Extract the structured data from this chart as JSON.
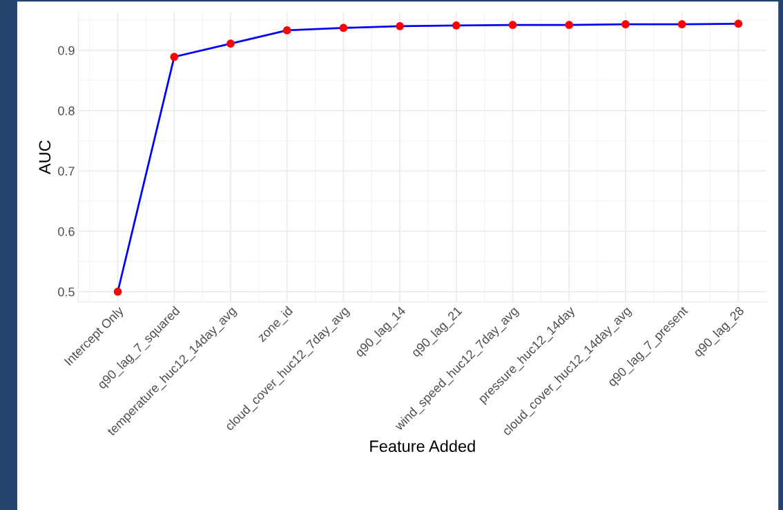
{
  "chart_data": {
    "type": "line",
    "xlabel": "Feature Added",
    "ylabel": "AUC",
    "categories": [
      "Intercept Only",
      "q90_lag_7_squared",
      "temperature_huc12_14day_avg",
      "zone_id",
      "cloud_cover_huc12_7day_avg",
      "q90_lag_14",
      "q90_lag_21",
      "wind_speed_huc12_7day_avg",
      "pressure_huc12_14day",
      "cloud_cover_huc12_14day_avg",
      "q90_lag_7_present",
      "q90_lag_28"
    ],
    "series": [
      {
        "color": "#0000ff",
        "colors": [
          "#ff0000",
          "#ff0000",
          "#ff0000",
          "#ff0000",
          "#ff0000",
          "#ff0000",
          "#ff0000",
          "#ff0000",
          "#ff0000",
          "#ff0000",
          "#ff0000",
          "#ff0000"
        ],
        "values": [
          0.5,
          0.889,
          0.911,
          0.933,
          0.937,
          0.94,
          0.941,
          0.942,
          0.942,
          0.943,
          0.943,
          0.944
        ]
      }
    ],
    "marker": "circle",
    "line_style": "solid",
    "ylim": [
      0.483,
      0.963
    ],
    "yticks": [
      0.5,
      0.6,
      0.7,
      0.8,
      0.9
    ],
    "grid": true
  }
}
